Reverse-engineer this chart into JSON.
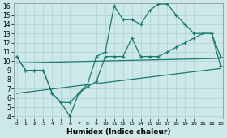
{
  "xlabel": "Humidex (Indice chaleur)",
  "background_color": "#cce8e8",
  "grid_color": "#b0d0d0",
  "line_color": "#1a7a6e",
  "xlim": [
    0,
    23
  ],
  "ylim": [
    4,
    16
  ],
  "xticks": [
    0,
    1,
    2,
    3,
    4,
    5,
    6,
    7,
    8,
    9,
    10,
    11,
    12,
    13,
    14,
    15,
    16,
    17,
    18,
    19,
    20,
    21,
    22,
    23
  ],
  "yticks": [
    4,
    5,
    6,
    7,
    8,
    9,
    10,
    11,
    12,
    13,
    14,
    15,
    16
  ],
  "line1_x": [
    0,
    1,
    2,
    3,
    4,
    5,
    6,
    7,
    8,
    9,
    10,
    11,
    12,
    13,
    14,
    15,
    16,
    17,
    18,
    19,
    20,
    21,
    22,
    23
  ],
  "line1_y": [
    10.5,
    9.0,
    9.0,
    9.0,
    6.5,
    5.5,
    5.5,
    6.5,
    7.2,
    7.8,
    10.5,
    10.5,
    10.5,
    12.5,
    10.5,
    10.5,
    10.5,
    11.0,
    11.5,
    12.0,
    12.5,
    13.0,
    13.0,
    9.5
  ],
  "line2_x": [
    0,
    1,
    2,
    3,
    4,
    5,
    6,
    7,
    8,
    9,
    10,
    11,
    12,
    13,
    14,
    15,
    16,
    17,
    18,
    19,
    20,
    21,
    22,
    23
  ],
  "line2_y": [
    10.5,
    9.0,
    9.0,
    9.0,
    6.5,
    5.5,
    4.0,
    6.5,
    7.5,
    10.5,
    11.0,
    16.0,
    14.5,
    14.5,
    14.0,
    15.5,
    16.2,
    16.2,
    15.0,
    14.0,
    13.0,
    13.0,
    13.0,
    10.5
  ],
  "line3_x": [
    0,
    23
  ],
  "line3_y": [
    9.8,
    10.3
  ],
  "line4_x": [
    0,
    23
  ],
  "line4_y": [
    6.5,
    9.2
  ],
  "xlabel_fontsize": 6.5,
  "tick_fontsize_x": 4.5,
  "tick_fontsize_y": 5.5
}
